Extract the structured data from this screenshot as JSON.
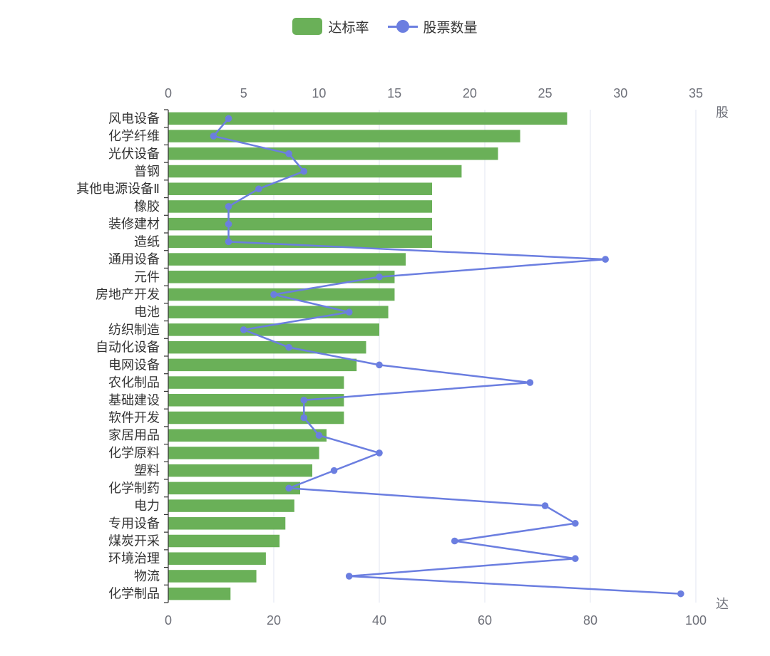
{
  "legend": {
    "bar_label": "达标率",
    "line_label": "股票数量"
  },
  "chart_data": {
    "type": "bar",
    "orientation": "horizontal",
    "categories": [
      "风电设备",
      "化学纤维",
      "光伏设备",
      "普钢",
      "其他电源设备Ⅱ",
      "橡胶",
      "装修建材",
      "造纸",
      "通用设备",
      "元件",
      "房地产开发",
      "电池",
      "纺织制造",
      "自动化设备",
      "电网设备",
      "农化制品",
      "基础建设",
      "软件开发",
      "家居用品",
      "化学原料",
      "塑料",
      "化学制药",
      "电力",
      "专用设备",
      "煤炭开采",
      "环境治理",
      "物流",
      "化学制品"
    ],
    "series": [
      {
        "name": "达标率",
        "type": "bar",
        "axis": "bottom",
        "values": [
          75.6,
          66.7,
          62.5,
          55.6,
          50,
          50,
          50,
          50,
          45,
          42.9,
          42.9,
          41.7,
          40,
          37.5,
          35.7,
          33.3,
          33.3,
          33.3,
          30,
          28.6,
          27.3,
          25,
          23.9,
          22.2,
          21.1,
          18.5,
          16.7,
          11.8
        ]
      },
      {
        "name": "股票数量",
        "type": "line",
        "axis": "top",
        "values": [
          4,
          3,
          8,
          9,
          6,
          4,
          4,
          4,
          29,
          14,
          7,
          12,
          5,
          8,
          14,
          24,
          9,
          9,
          10,
          14,
          11,
          8,
          25,
          27,
          19,
          27,
          12,
          34
        ]
      }
    ],
    "x_bottom_ticks": [
      "0",
      "20",
      "40",
      "60",
      "80",
      "100"
    ],
    "x_bottom_range": [
      0,
      100
    ],
    "x_top_ticks": [
      "0",
      "5",
      "10",
      "15",
      "20",
      "25",
      "30",
      "35"
    ],
    "x_top_range": [
      0,
      35
    ],
    "right_edge_top_label": "股",
    "right_edge_bottom_label": "达",
    "grid": true,
    "legend_position": "top-center",
    "colors": {
      "bar": "#6ab058",
      "line": "#6b7ee0",
      "grid": "#e0e6f1",
      "axis": "#333333"
    }
  }
}
